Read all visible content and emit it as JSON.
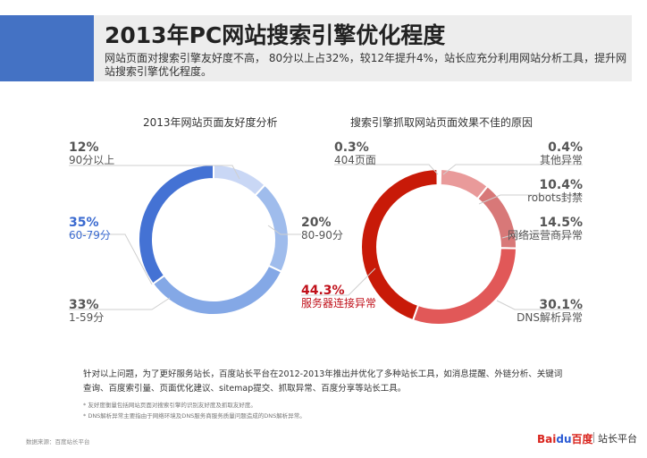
{
  "header": {
    "title": "2013年PC网站搜索引擎优化程度",
    "subtitle": "网站页面对搜索引擎友好度不高， 80分以上占32%，较12年提升4%，站长应充分利用网站分析工具，提升网站搜索引擎优化程度。"
  },
  "chart_data": [
    {
      "type": "pie",
      "title": "2013年网站页面友好度分析",
      "series": [
        {
          "label": "90分以上",
          "value": 12,
          "display": "12%",
          "color": "#c9d7f5"
        },
        {
          "label": "80-90分",
          "value": 20,
          "display": "20%",
          "color": "#9fbcec"
        },
        {
          "label": "1-59分",
          "value": 33,
          "display": "33%",
          "color": "#84a8e6"
        },
        {
          "label": "60-79分",
          "value": 35,
          "display": "35%",
          "color": "#4472d4"
        }
      ]
    },
    {
      "type": "pie",
      "title": "搜索引擎抓取网站页面效果不佳的原因",
      "series": [
        {
          "label": "其他异常",
          "value": 0.4,
          "display": "0.4%",
          "color": "#f2bcbc"
        },
        {
          "label": "robots封禁",
          "value": 10.4,
          "display": "10.4%",
          "color": "#e99a9a"
        },
        {
          "label": "网络运营商异常",
          "value": 14.5,
          "display": "14.5%",
          "color": "#d87878"
        },
        {
          "label": "DNS解析异常",
          "value": 30.1,
          "display": "30.1%",
          "color": "#e15858"
        },
        {
          "label": "服务器连接异常",
          "value": 44.3,
          "display": "44.3%",
          "color": "#c81a08"
        },
        {
          "label": "404页面",
          "value": 0.3,
          "display": "0.3%",
          "color": "#f5d0d0"
        }
      ]
    }
  ],
  "notes": {
    "main": "针对以上问题，为了更好服务站长，百度站长平台在2012-2013年推出并优化了多种站长工具，如消息提醒、外链分析、关键词查询、百度索引量、页面优化建议、sitemap提交、抓取异常、百度分享等站长工具。",
    "footnote1": "* 友好度衡量包括网站页面对搜索引擎的识别友好度及抓取友好度。",
    "footnote2": "* DNS解析异常主要指由于网络环境及DNS服务商服务质量问题造成的DNS解析异常。"
  },
  "footer": {
    "source": "数据来源：百度站长平台",
    "logo": {
      "bai": "Bai",
      "paw": "du",
      "cn": "百度"
    },
    "platform": "站长平台"
  }
}
